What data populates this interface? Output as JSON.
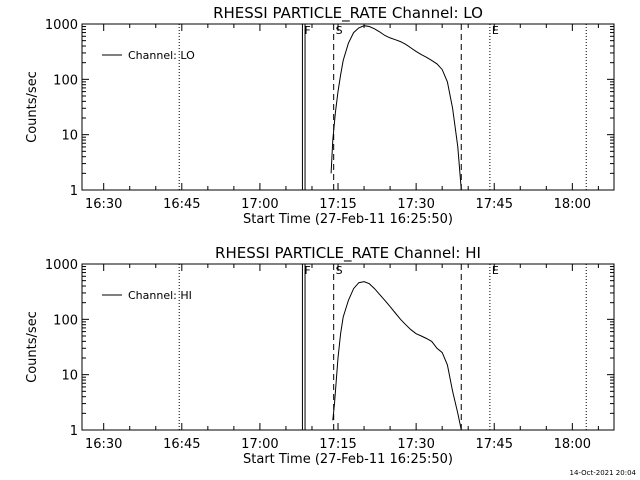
{
  "footer_timestamp": "14-Oct-2021 20:04",
  "chart_data": [
    {
      "type": "line",
      "title": "RHESSI PARTICLE_RATE Channel: LO",
      "xlabel": "Start Time (27-Feb-11 16:25:50)",
      "ylabel": "Counts/sec",
      "yscale": "log",
      "ylim": [
        1,
        1000
      ],
      "xlim": [
        "16:25:50",
        "18:08:00"
      ],
      "x_ticks": [
        "16:30",
        "16:45",
        "17:00",
        "17:15",
        "17:30",
        "17:45",
        "18:00"
      ],
      "y_ticks": [
        "1",
        "10",
        "100",
        "1000"
      ],
      "legend": {
        "placement": "top-left",
        "entries": [
          "Channel: LO"
        ]
      },
      "series": [
        {
          "name": "Channel: LO",
          "x": [
            "17:13:40",
            "17:14:00",
            "17:14:30",
            "17:15:00",
            "17:15:30",
            "17:16:00",
            "17:17:00",
            "17:18:00",
            "17:19:00",
            "17:20:00",
            "17:21:00",
            "17:22:00",
            "17:23:00",
            "17:24:00",
            "17:25:00",
            "17:26:00",
            "17:27:00",
            "17:28:00",
            "17:29:00",
            "17:30:00",
            "17:31:00",
            "17:32:00",
            "17:33:00",
            "17:34:00",
            "17:35:00",
            "17:36:00",
            "17:37:00",
            "17:38:00",
            "17:38:40"
          ],
          "y": [
            2,
            8,
            25,
            60,
            120,
            220,
            450,
            700,
            850,
            930,
            900,
            820,
            720,
            620,
            560,
            520,
            480,
            430,
            370,
            320,
            280,
            250,
            220,
            190,
            150,
            90,
            30,
            6,
            1
          ]
        }
      ],
      "vertical_markers": [
        {
          "time": "16:44:30",
          "style": "dotted",
          "label": ""
        },
        {
          "time": "17:08:10",
          "style": "solid",
          "label": "F"
        },
        {
          "time": "17:08:40",
          "style": "solid",
          "label": ""
        },
        {
          "time": "17:14:10",
          "style": "dashed",
          "label": "S"
        },
        {
          "time": "17:38:40",
          "style": "dashed",
          "label": ""
        },
        {
          "time": "17:44:10",
          "style": "dotted",
          "label": "E"
        },
        {
          "time": "18:02:40",
          "style": "dotted",
          "label": ""
        }
      ]
    },
    {
      "type": "line",
      "title": "RHESSI PARTICLE_RATE Channel: HI",
      "xlabel": "Start Time (27-Feb-11 16:25:50)",
      "ylabel": "Counts/sec",
      "yscale": "log",
      "ylim": [
        1,
        1000
      ],
      "xlim": [
        "16:25:50",
        "18:08:00"
      ],
      "x_ticks": [
        "16:30",
        "16:45",
        "17:00",
        "17:15",
        "17:30",
        "17:45",
        "18:00"
      ],
      "y_ticks": [
        "1",
        "10",
        "100",
        "1000"
      ],
      "legend": {
        "placement": "top-left",
        "entries": [
          "Channel: HI"
        ]
      },
      "series": [
        {
          "name": "Channel: HI",
          "x": [
            "17:14:00",
            "17:14:20",
            "17:15:00",
            "17:15:30",
            "17:16:00",
            "17:17:00",
            "17:18:00",
            "17:19:00",
            "17:20:00",
            "17:21:00",
            "17:22:00",
            "17:23:00",
            "17:24:00",
            "17:25:00",
            "17:26:00",
            "17:27:00",
            "17:28:00",
            "17:29:00",
            "17:30:00",
            "17:31:00",
            "17:32:00",
            "17:33:00",
            "17:34:00",
            "17:35:00",
            "17:36:00",
            "17:37:00",
            "17:38:00",
            "17:38:40"
          ],
          "y": [
            1.5,
            3,
            20,
            55,
            110,
            220,
            360,
            460,
            480,
            440,
            360,
            280,
            220,
            170,
            130,
            100,
            80,
            65,
            55,
            50,
            45,
            40,
            30,
            25,
            15,
            5,
            2,
            1
          ]
        }
      ],
      "vertical_markers": [
        {
          "time": "16:44:30",
          "style": "dotted",
          "label": ""
        },
        {
          "time": "17:08:10",
          "style": "solid",
          "label": "F"
        },
        {
          "time": "17:08:40",
          "style": "solid",
          "label": ""
        },
        {
          "time": "17:14:10",
          "style": "dashed",
          "label": "S"
        },
        {
          "time": "17:38:40",
          "style": "dashed",
          "label": ""
        },
        {
          "time": "17:44:10",
          "style": "dotted",
          "label": "E"
        },
        {
          "time": "18:02:40",
          "style": "dotted",
          "label": ""
        }
      ]
    }
  ]
}
